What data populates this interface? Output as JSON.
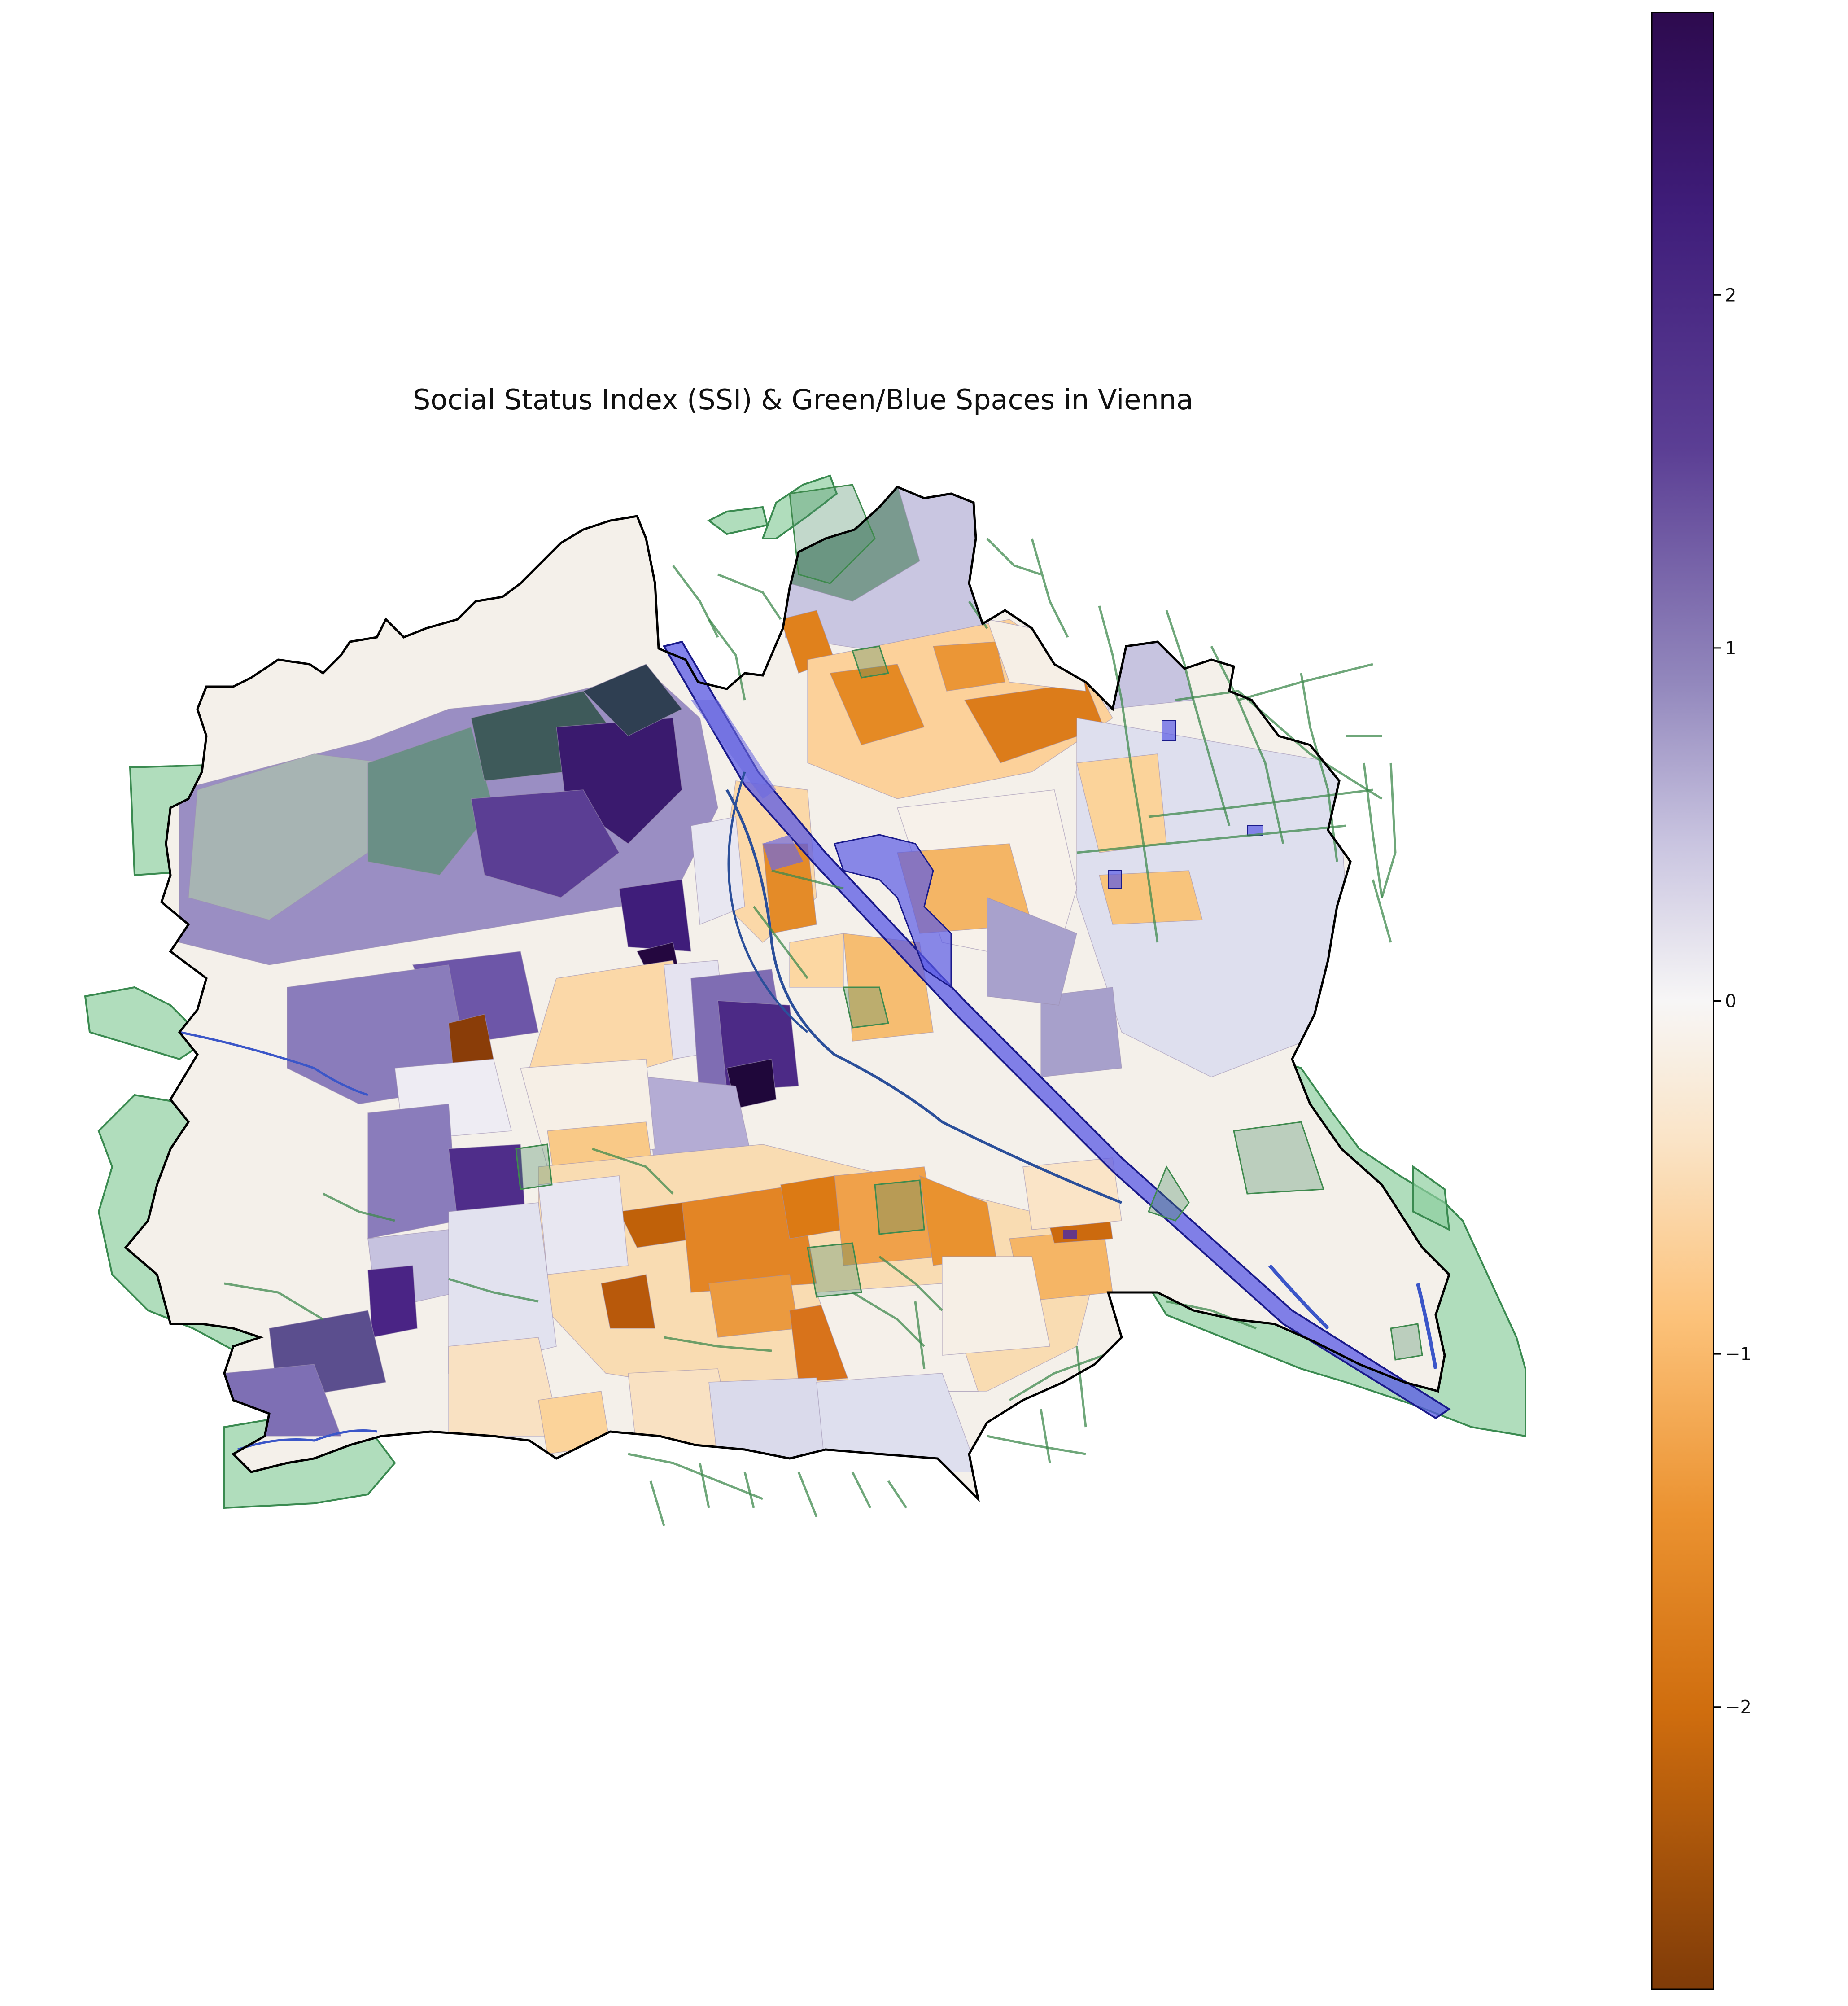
{
  "map": {
    "title": "Social Status Index (SSI) & Green/Blue Spaces in Vienna",
    "layers": [
      {
        "name": "city-boundary",
        "color": "#000000"
      },
      {
        "name": "ssi-districts",
        "colormap": "PuOr"
      },
      {
        "name": "green-spaces",
        "color": "#5aa86e"
      },
      {
        "name": "blue-spaces",
        "color": "#3a3aff"
      }
    ]
  },
  "colorbar": {
    "colormap": "PuOr",
    "range": [
      -2.8,
      2.8
    ],
    "ticks": [
      {
        "value": 2,
        "label": "2"
      },
      {
        "value": 1,
        "label": "1"
      },
      {
        "value": 0,
        "label": "0"
      },
      {
        "value": -1,
        "label": "−1"
      },
      {
        "value": -2,
        "label": "−2"
      }
    ],
    "colors": {
      "top": "#2d0a4e",
      "purple_mid": "#5b3e94",
      "lavender": "#b1aad3",
      "neutral": "#f7f6f6",
      "light_orange": "#fad9a6",
      "orange": "#f4a345",
      "dark_orange": "#d8731b",
      "bottom": "#7f3b08"
    }
  }
}
